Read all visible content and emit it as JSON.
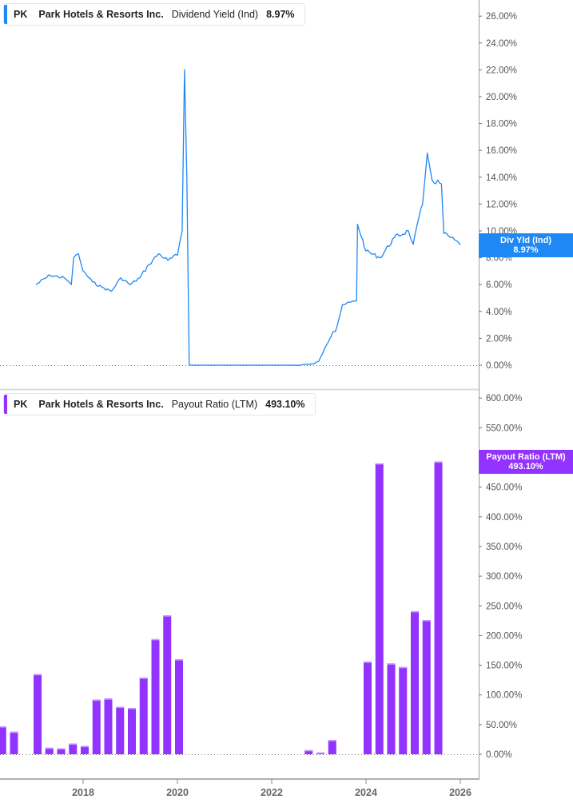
{
  "panes": {
    "top": {
      "ticker": "PK",
      "company": "Park Hotels & Resorts Inc.",
      "metric": "Dividend Yield (Ind)",
      "value": "8.97%",
      "tag_line1": "Div Yld (Ind)",
      "tag_line2": "8.97%",
      "color": "#1e88f5"
    },
    "bottom": {
      "ticker": "PK",
      "company": "Park Hotels & Resorts Inc.",
      "metric": "Payout Ratio (LTM)",
      "value": "493.10%",
      "tag_line1": "Payout Ratio (LTM)",
      "tag_line2": "493.10%",
      "color": "#9233ff"
    }
  },
  "x_axis": {
    "ticks": [
      "2018",
      "2020",
      "2022",
      "2024",
      "2026"
    ]
  },
  "chart_data": [
    {
      "type": "line",
      "title": "PK Park Hotels & Resorts Inc. Dividend Yield (Ind) 8.97%",
      "xlabel": "",
      "ylabel": "Dividend Yield (Ind)",
      "ylim": [
        0,
        26
      ],
      "y_ticks": [
        "0.00%",
        "2.00%",
        "4.00%",
        "6.00%",
        "8.00%",
        "10.00%",
        "12.00%",
        "14.00%",
        "16.00%",
        "18.00%",
        "20.00%",
        "22.00%",
        "24.00%",
        "26.00%"
      ],
      "x_ticks": [
        "2018",
        "2020",
        "2022",
        "2024",
        "2026"
      ],
      "grid": false,
      "legend_position": "top-left",
      "series": [
        {
          "name": "Dividend Yield (Ind)",
          "x": [
            2017.0,
            2017.3,
            2017.6,
            2017.7,
            2017.75,
            2017.8,
            2017.9,
            2018.0,
            2018.2,
            2018.4,
            2018.6,
            2018.8,
            2019.0,
            2019.2,
            2019.4,
            2019.6,
            2019.8,
            2020.0,
            2020.1,
            2020.15,
            2020.2,
            2020.25,
            2022.5,
            2022.9,
            2023.0,
            2023.3,
            2023.35,
            2023.5,
            2023.8,
            2023.82,
            2024.0,
            2024.3,
            2024.6,
            2024.9,
            2025.0,
            2025.2,
            2025.3,
            2025.4,
            2025.6,
            2025.65,
            2025.8,
            2026.0
          ],
          "values": [
            6.0,
            6.7,
            6.5,
            6.2,
            6.0,
            8.0,
            8.3,
            7.0,
            6.2,
            5.8,
            5.5,
            6.5,
            6.0,
            6.5,
            7.5,
            8.3,
            7.8,
            8.2,
            10.0,
            22.0,
            14.0,
            0.0,
            0.0,
            0.1,
            0.3,
            2.5,
            2.5,
            4.5,
            4.8,
            10.5,
            8.5,
            8.0,
            9.5,
            10.0,
            9.0,
            12.0,
            15.8,
            13.8,
            13.5,
            9.8,
            9.5,
            8.97
          ]
        }
      ]
    },
    {
      "type": "bar",
      "title": "PK Park Hotels & Resorts Inc. Payout Ratio (LTM) 493.10%",
      "xlabel": "",
      "ylabel": "Payout Ratio (LTM)",
      "ylim": [
        0,
        600
      ],
      "y_ticks": [
        "0.00%",
        "50.00%",
        "100.00%",
        "150.00%",
        "200.00%",
        "250.00%",
        "300.00%",
        "350.00%",
        "400.00%",
        "450.00%",
        "500.00%",
        "550.00%",
        "600.00%"
      ],
      "x_ticks": [
        "2018",
        "2020",
        "2022",
        "2024",
        "2026"
      ],
      "grid": false,
      "legend_position": "top-left",
      "categories": [
        "2016.25",
        "2016.5",
        "2017.0",
        "2017.25",
        "2017.5",
        "2017.75",
        "2018.0",
        "2018.25",
        "2018.5",
        "2018.75",
        "2019.0",
        "2019.25",
        "2019.5",
        "2019.75",
        "2020.0",
        "2022.75",
        "2023.0",
        "2023.25",
        "2024.0",
        "2024.25",
        "2024.5",
        "2024.75",
        "2025.0",
        "2025.25",
        "2025.5"
      ],
      "series": [
        {
          "name": "Payout Ratio (LTM)",
          "values": [
            47,
            38,
            135,
            11,
            10,
            18,
            14,
            92,
            94,
            80,
            78,
            129,
            194,
            234,
            160,
            7,
            3,
            24,
            156,
            490,
            153,
            147,
            241,
            226,
            493.1
          ]
        }
      ]
    }
  ]
}
